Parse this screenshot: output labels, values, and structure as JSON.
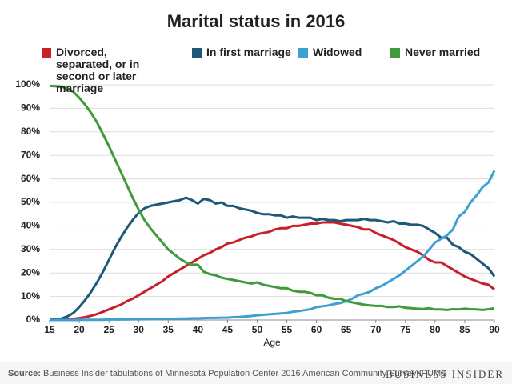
{
  "chart_data": {
    "type": "line",
    "title": "Marital status in 2016",
    "xlabel": "Age",
    "x": [
      15,
      16,
      17,
      18,
      19,
      20,
      21,
      22,
      23,
      24,
      25,
      26,
      27,
      28,
      29,
      30,
      31,
      32,
      33,
      34,
      35,
      36,
      37,
      38,
      39,
      40,
      41,
      42,
      43,
      44,
      45,
      46,
      47,
      48,
      49,
      50,
      51,
      52,
      53,
      54,
      55,
      56,
      57,
      58,
      59,
      60,
      61,
      62,
      63,
      64,
      65,
      66,
      67,
      68,
      69,
      70,
      71,
      72,
      73,
      74,
      75,
      76,
      77,
      78,
      79,
      80,
      81,
      82,
      83,
      84,
      85,
      86,
      87,
      88,
      89,
      90
    ],
    "xlim": [
      15,
      90
    ],
    "xticks": [
      15,
      20,
      25,
      30,
      35,
      40,
      45,
      50,
      55,
      60,
      65,
      70,
      75,
      80,
      85,
      90
    ],
    "ylim": [
      0,
      100
    ],
    "yticks": [
      {
        "value": 0,
        "label": "0%"
      },
      {
        "value": 10,
        "label": "10%"
      },
      {
        "value": 20,
        "label": "20%"
      },
      {
        "value": 30,
        "label": "30%"
      },
      {
        "value": 40,
        "label": "40%"
      },
      {
        "value": 50,
        "label": "50%"
      },
      {
        "value": 60,
        "label": "60%"
      },
      {
        "value": 70,
        "label": "70%"
      },
      {
        "value": 80,
        "label": "80%"
      },
      {
        "value": 90,
        "label": "90%"
      },
      {
        "value": 100,
        "label": "100%"
      }
    ],
    "grid": true,
    "series": [
      {
        "name": "Divorced, separated, or in second or later marriage",
        "color": "#c8202a",
        "values": [
          0,
          0,
          0.1,
          0.3,
          0.5,
          0.8,
          1.2,
          1.8,
          2.5,
          3.5,
          4.5,
          5.5,
          6.5,
          8,
          9,
          10.5,
          12,
          13.5,
          15,
          16.5,
          18.5,
          20,
          21.5,
          23,
          24.5,
          26,
          27.5,
          28.5,
          30,
          31,
          32.5,
          33,
          34,
          35,
          35.5,
          36.5,
          37,
          37.5,
          38.5,
          39,
          39,
          40,
          40,
          40.5,
          41,
          41,
          41.5,
          41.5,
          41.5,
          41,
          40.5,
          40,
          39.5,
          38.5,
          38.5,
          37,
          36,
          35,
          34,
          32.5,
          31,
          30,
          29,
          27.5,
          25.5,
          24.5,
          24.5,
          23,
          21.5,
          20,
          18.5,
          17.5,
          16.5,
          15.5,
          15,
          13
        ]
      },
      {
        "name": "In first marriage",
        "color": "#1c5878",
        "values": [
          0.2,
          0.3,
          0.6,
          1.5,
          3,
          5.5,
          8.5,
          12,
          16,
          20.5,
          25.5,
          30.5,
          35,
          39,
          42.5,
          45.5,
          47.5,
          48.5,
          49,
          49.5,
          50,
          50.5,
          51,
          52,
          51,
          49.5,
          51.5,
          51,
          49.5,
          50,
          48.5,
          48.5,
          47.5,
          47,
          46.5,
          45.5,
          45,
          45,
          44.5,
          44.5,
          43.5,
          44,
          43.5,
          43.5,
          43.5,
          42.5,
          43,
          42.5,
          42.5,
          42,
          42.5,
          42.5,
          42.5,
          43,
          42.5,
          42.5,
          42,
          41.5,
          42,
          41,
          41,
          40.5,
          40.5,
          40,
          38.5,
          37,
          35,
          35,
          32,
          31,
          29,
          28,
          26,
          24,
          22,
          18.5
        ]
      },
      {
        "name": "Widowed",
        "color": "#3ea0d0",
        "values": [
          0,
          0,
          0,
          0,
          0,
          0.1,
          0.1,
          0.1,
          0.1,
          0.1,
          0.2,
          0.2,
          0.2,
          0.2,
          0.3,
          0.3,
          0.3,
          0.4,
          0.4,
          0.4,
          0.5,
          0.5,
          0.6,
          0.6,
          0.7,
          0.7,
          0.8,
          0.9,
          0.9,
          1,
          1,
          1.2,
          1.3,
          1.5,
          1.7,
          2,
          2.2,
          2.4,
          2.6,
          2.8,
          3,
          3.5,
          3.8,
          4.2,
          4.6,
          5.5,
          5.8,
          6.2,
          6.8,
          7.2,
          8,
          9,
          10.5,
          11.2,
          12,
          13.5,
          14.5,
          16,
          17.5,
          19,
          21,
          23,
          25,
          27,
          30,
          33,
          34.5,
          36,
          38.5,
          44,
          46,
          50,
          53,
          56.5,
          58.5,
          63.5
        ]
      },
      {
        "name": "Never married",
        "color": "#3e9a3a",
        "values": [
          99.5,
          99.4,
          99.2,
          98.5,
          97,
          94.5,
          91.5,
          88,
          84,
          79,
          74,
          68.5,
          63,
          57.5,
          52,
          47,
          42.5,
          39,
          36,
          33,
          30,
          28,
          26,
          24.5,
          23.5,
          23.5,
          20.5,
          19.5,
          19,
          18,
          17.5,
          17,
          16.5,
          16,
          15.5,
          16,
          15,
          14.5,
          14,
          13.5,
          13.5,
          12.5,
          12,
          12,
          11.5,
          10.5,
          10.5,
          9.5,
          9,
          9,
          8,
          7.5,
          7,
          6.5,
          6.2,
          6,
          6,
          5.5,
          5.5,
          5.8,
          5.2,
          5,
          4.8,
          4.7,
          5,
          4.5,
          4.5,
          4.3,
          4.6,
          4.5,
          4.8,
          4.6,
          4.5,
          4.3,
          4.6,
          5
        ]
      }
    ],
    "source_label": "Source:",
    "source": "Business Insider tabulations of Minnesota Population Center 2016 American Community Survey IPUMS",
    "brand": "BUSINESS INSIDER"
  }
}
